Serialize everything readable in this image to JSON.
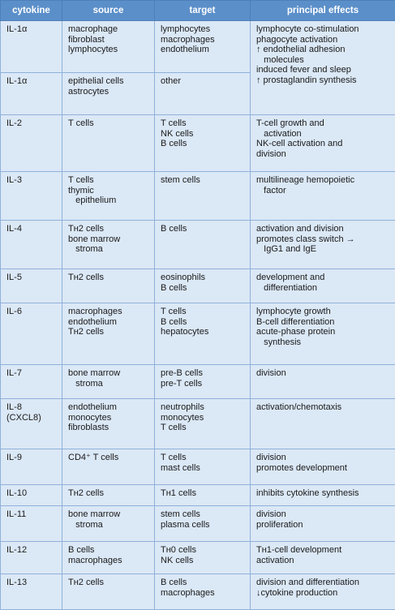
{
  "table": {
    "header": [
      "cytokine",
      "source",
      "target",
      "principal effects"
    ],
    "rows": [
      {
        "cytokine": [
          "IL-1α"
        ],
        "source": [
          "macrophage",
          "fibroblast",
          "lymphocytes"
        ],
        "target": [
          "lymphocytes",
          "macrophages",
          "endothelium"
        ],
        "effects": [
          "lymphocyte co-stimulation",
          "phagocyte activation",
          "↑ endothelial adhesion",
          "   molecules",
          "induced fever and sleep",
          "↑ prostaglandin synthesis"
        ]
      },
      {
        "cytokine": [
          "IL-1α"
        ],
        "source": [
          "epithelial cells",
          "astrocytes"
        ],
        "target": [
          "other"
        ]
      },
      {
        "cytokine": [
          "IL-2"
        ],
        "source": [
          "T cells"
        ],
        "target": [
          "T cells",
          "NK cells",
          "B cells"
        ],
        "effects": [
          "T-cell growth and",
          "   activation",
          "NK-cell activation and",
          "division"
        ]
      },
      {
        "cytokine": [
          "IL-3"
        ],
        "source": [
          "T cells",
          "thymic",
          "   epithelium"
        ],
        "target": [
          "stem cells"
        ],
        "effects": [
          "multilineage hemopoietic",
          "   factor"
        ]
      },
      {
        "cytokine": [
          "IL-4"
        ],
        "source": [
          "Tʜ2 cells",
          "bone marrow",
          "   stroma"
        ],
        "target": [
          "B cells"
        ],
        "effects": [
          "activation and division",
          "promotes class switch →",
          "   IgG1 and IgE"
        ]
      },
      {
        "cytokine": [
          "IL-5"
        ],
        "source": [
          "Tʜ2 cells"
        ],
        "target": [
          "eosinophils",
          "B cells"
        ],
        "effects": [
          "development and",
          "   differentiation"
        ]
      },
      {
        "cytokine": [
          "IL-6"
        ],
        "source": [
          "macrophages",
          "endothelium",
          "Tʜ2 cells"
        ],
        "target": [
          "T cells",
          "B cells",
          "hepatocytes"
        ],
        "effects": [
          "lymphocyte growth",
          "B-cell differentiation",
          "acute-phase protein",
          "   synthesis"
        ]
      },
      {
        "cytokine": [
          "IL-7"
        ],
        "source": [
          "bone marrow",
          "   stroma"
        ],
        "target": [
          "pre-B cells",
          "pre-T cells"
        ],
        "effects": [
          "division"
        ]
      },
      {
        "cytokine": [
          "IL-8",
          "(CXCL8)"
        ],
        "source": [
          "endothelium",
          "monocytes",
          "fibroblasts"
        ],
        "target": [
          "neutrophils",
          "monocytes",
          "T cells"
        ],
        "effects": [
          "activation/chemotaxis"
        ]
      },
      {
        "cytokine": [
          "IL-9"
        ],
        "source": [
          "CD4⁺ T cells"
        ],
        "target": [
          "T cells",
          "mast cells"
        ],
        "effects": [
          "division",
          "promotes development"
        ]
      },
      {
        "cytokine": [
          "IL-10"
        ],
        "source": [
          "Tʜ2 cells"
        ],
        "target": [
          "Tʜ1 cells"
        ],
        "effects": [
          "inhibits cytokine synthesis"
        ]
      },
      {
        "cytokine": [
          "IL-11"
        ],
        "source": [
          "bone marrow",
          "   stroma"
        ],
        "target": [
          "stem cells",
          "plasma cells"
        ],
        "effects": [
          "division",
          "proliferation"
        ]
      },
      {
        "cytokine": [
          "IL-12"
        ],
        "source": [
          "B cells",
          "macrophages"
        ],
        "target": [
          "Tʜ0 cells",
          "NK cells"
        ],
        "effects": [
          "Tʜ1-cell development",
          "activation"
        ]
      },
      {
        "cytokine": [
          "IL-13"
        ],
        "source": [
          "Tʜ2 cells"
        ],
        "target": [
          "B cells",
          "macrophages"
        ],
        "effects": [
          "division and differentiation",
          "↓cytokine production"
        ]
      }
    ]
  }
}
